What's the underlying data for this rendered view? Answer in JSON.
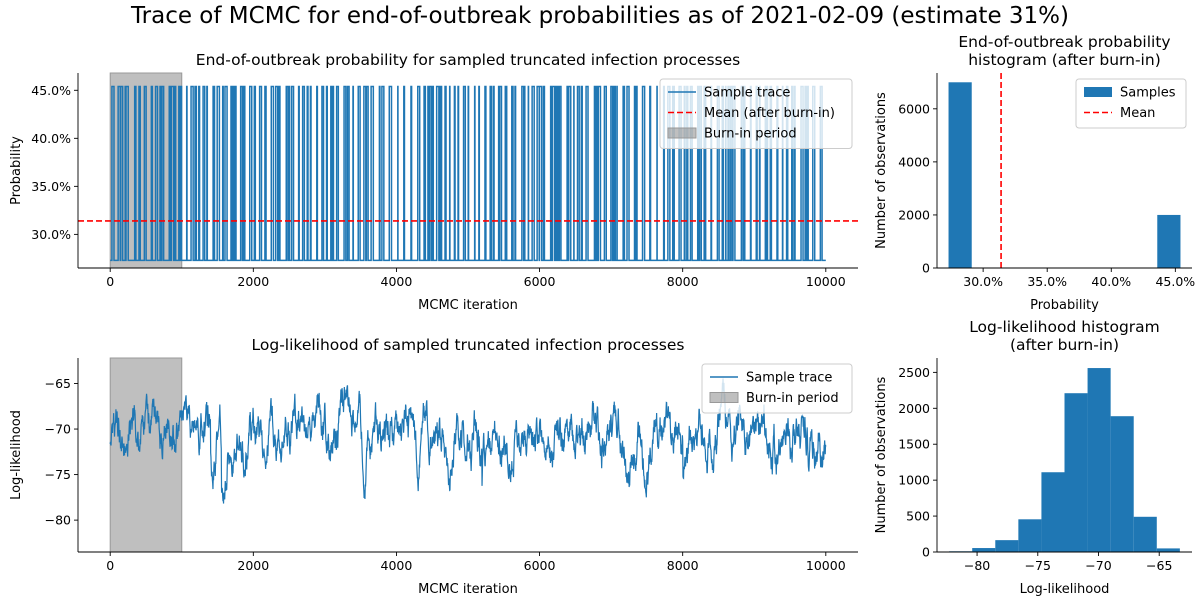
{
  "suptitle": "Trace of MCMC for end-of-outbreak probabilities as of 2021-02-09 (estimate 31%)",
  "colors": {
    "series": "#1f77b4",
    "mean": "#ff0000",
    "burnin": "#808080",
    "burnin_edge": "#999999"
  },
  "chart_data": [
    {
      "type": "line",
      "id": "prob_trace",
      "title": "End-of-outbreak probability for sampled truncated infection processes",
      "xlabel": "MCMC iteration",
      "ylabel": "Probability",
      "xlim": [
        -450,
        10450
      ],
      "ylim": [
        0.265,
        0.468
      ],
      "xticks": [
        0,
        2000,
        4000,
        6000,
        8000,
        10000
      ],
      "xtick_labels": [
        "0",
        "2000",
        "4000",
        "6000",
        "8000",
        "10000"
      ],
      "yticks": [
        0.3,
        0.35,
        0.4,
        0.45
      ],
      "ytick_labels": [
        "30.0%",
        "35.0%",
        "40.0%",
        "45.0%"
      ],
      "series": [
        {
          "name": "Sample trace",
          "levels": [
            0.273,
            0.454
          ],
          "n_iter": 10000,
          "high_fraction": 0.22
        }
      ],
      "mean_line": {
        "name": "Mean (after burn-in)",
        "value": 0.314
      },
      "burnin": {
        "name": "Burn-in period",
        "start": 0,
        "end": 1000
      },
      "legend_entries": [
        "Sample trace",
        "Mean (after burn-in)",
        "Burn-in period"
      ],
      "legend_loc": "upper right"
    },
    {
      "type": "bar",
      "id": "prob_hist",
      "title": "End-of-outbreak probability histogram (after burn-in)",
      "title_lines": [
        "End-of-outbreak probability",
        "histogram (after burn-in)"
      ],
      "xlabel": "Probability",
      "ylabel": "Number of observations",
      "xlim": [
        0.264,
        0.463
      ],
      "ylim": [
        0,
        7350
      ],
      "xticks": [
        0.3,
        0.35,
        0.4,
        0.45
      ],
      "xtick_labels": [
        "30.0%",
        "35.0%",
        "40.0%",
        "45.0%"
      ],
      "yticks": [
        0,
        2000,
        4000,
        6000
      ],
      "ytick_labels": [
        "0",
        "2000",
        "4000",
        "6000"
      ],
      "bins": [
        0.273,
        0.2911,
        0.3092,
        0.3273,
        0.3454,
        0.3635,
        0.3816,
        0.3997,
        0.4178,
        0.4359,
        0.454
      ],
      "counts": [
        7000,
        0,
        0,
        0,
        0,
        0,
        0,
        0,
        0,
        2000
      ],
      "mean_line": {
        "name": "Mean",
        "value": 0.314
      },
      "legend_entries": [
        "Samples",
        "Mean"
      ],
      "legend_loc": "upper right"
    },
    {
      "type": "line",
      "id": "ll_trace",
      "title": "Log-likelihood of sampled truncated infection processes",
      "xlabel": "MCMC iteration",
      "ylabel": "Log-likelihood",
      "xlim": [
        -450,
        10450
      ],
      "ylim": [
        -83.5,
        -62.2
      ],
      "xticks": [
        0,
        2000,
        4000,
        6000,
        8000,
        10000
      ],
      "xtick_labels": [
        "0",
        "2000",
        "4000",
        "6000",
        "8000",
        "10000"
      ],
      "yticks": [
        -80,
        -75,
        -70,
        -65
      ],
      "ytick_labels": [
        "−80",
        "−75",
        "−70",
        "−65"
      ],
      "series": [
        {
          "name": "Sample trace",
          "n_iter": 10000,
          "center": -71.0,
          "min": -82.3,
          "max": -63.2
        }
      ],
      "burnin": {
        "name": "Burn-in period",
        "start": 0,
        "end": 1000
      },
      "legend_entries": [
        "Sample trace",
        "Burn-in period"
      ],
      "legend_loc": "upper right"
    },
    {
      "type": "bar",
      "id": "ll_hist",
      "title": "Log-likelihood histogram (after burn-in)",
      "title_lines": [
        "Log-likelihood histogram",
        "(after burn-in)"
      ],
      "xlabel": "Log-likelihood",
      "ylabel": "Number of observations",
      "xlim": [
        -83.3,
        -62.3
      ],
      "ylim": [
        0,
        2700
      ],
      "xticks": [
        -80,
        -75,
        -70,
        -65
      ],
      "xtick_labels": [
        "−80",
        "−75",
        "−70",
        "−65"
      ],
      "yticks": [
        0,
        500,
        1000,
        1500,
        2000,
        2500
      ],
      "ytick_labels": [
        "0",
        "500",
        "1000",
        "1500",
        "2000",
        "2500"
      ],
      "bins": [
        -82.3,
        -80.4,
        -78.5,
        -76.6,
        -74.7,
        -72.8,
        -70.9,
        -69.0,
        -67.1,
        -65.2,
        -63.3
      ],
      "counts": [
        10,
        55,
        165,
        455,
        1110,
        2210,
        2560,
        1890,
        490,
        50
      ],
      "legend_entries": [],
      "legend_loc": ""
    }
  ]
}
